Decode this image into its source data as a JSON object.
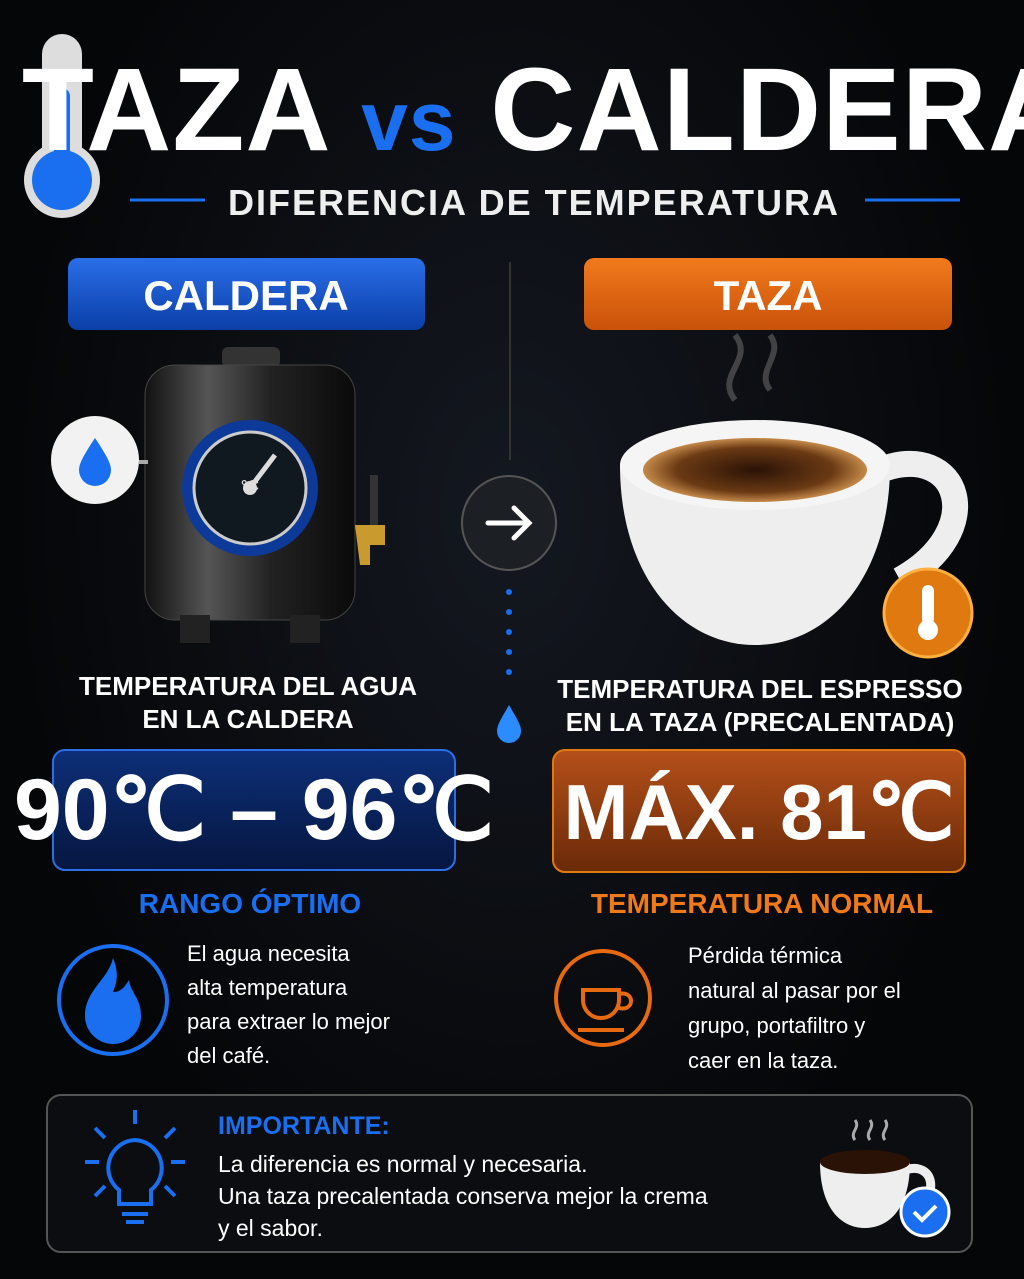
{
  "header": {
    "title_left": "TAZA",
    "title_vs": "vs",
    "title_right": "CALDERA",
    "subtitle": "DIFERENCIA DE TEMPERATURA"
  },
  "left": {
    "heading": "CALDERA",
    "gauge_unit": "°C",
    "description": [
      "TEMPERATURA DEL AGUA",
      "EN LA CALDERA"
    ],
    "value": "90℃ – 96℃",
    "label": "RANGO ÓPTIMO",
    "note": [
      "El agua necesita",
      "alta temperatura",
      "para extraer lo mejor",
      "del café."
    ]
  },
  "right": {
    "heading": "TAZA",
    "description": [
      "TEMPERATURA DEL ESPRESSO",
      "EN LA TAZA (PRECALENTADA)"
    ],
    "value": "MÁX. 81℃",
    "label": "TEMPERATURA NORMAL",
    "note": [
      "Pérdida térmica",
      "natural al pasar por el",
      "grupo, portafiltro y",
      "caer en la taza."
    ]
  },
  "important": {
    "title": "IMPORTANTE:",
    "lines": [
      "La diferencia es normal y necesaria.",
      "Una taza precalentada conserva mejor la crema",
      "y el sabor."
    ]
  }
}
